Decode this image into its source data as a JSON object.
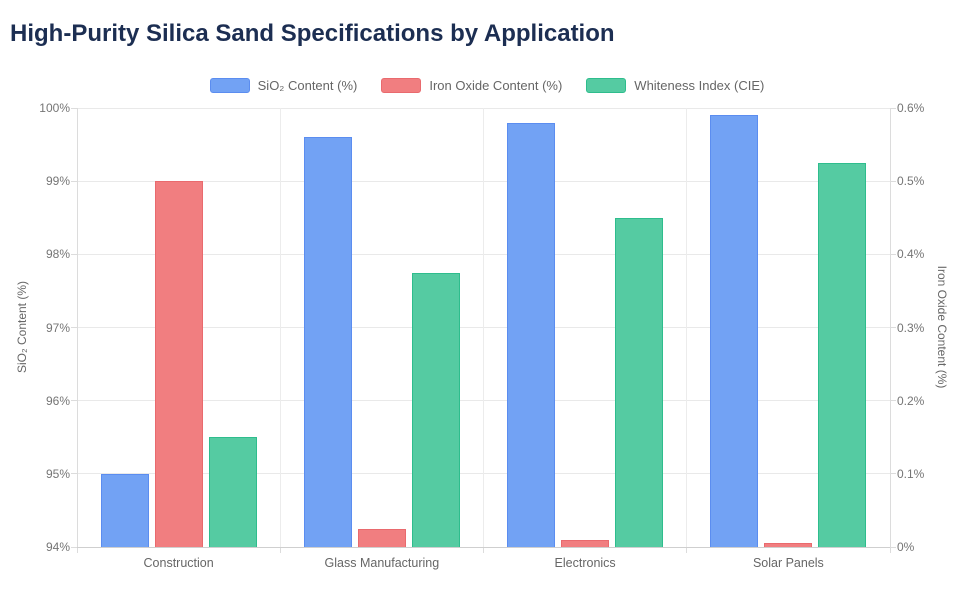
{
  "chart_data": {
    "type": "bar",
    "title": "High-Purity Silica Sand Specifications by Application",
    "categories": [
      "Construction",
      "Glass Manufacturing",
      "Electronics",
      "Solar Panels"
    ],
    "series": [
      {
        "name": "SiO₂ Content (%)",
        "axis": "left",
        "values": [
          95.0,
          99.6,
          99.8,
          99.9
        ],
        "fill": "#72A2F4",
        "border": "#5B8DF0"
      },
      {
        "name": "Iron Oxide Content (%)",
        "axis": "right",
        "values": [
          0.5,
          0.025,
          0.01,
          0.005
        ],
        "fill": "#F17E80",
        "border": "#E96A6E"
      },
      {
        "name": "Whiteness Index (CIE)",
        "axis": "hidden",
        "values": [
          85,
          92.5,
          95,
          97.5
        ],
        "fill": "#55CBA2",
        "border": "#2EBD8D"
      }
    ],
    "axes": {
      "left": {
        "title": "SiO₂ Content (%)",
        "min": 94,
        "max": 100,
        "tick_labels": [
          "100%",
          "99%",
          "98%",
          "97%",
          "96%",
          "95%",
          "94%"
        ]
      },
      "right": {
        "title": "Iron Oxide Content (%)",
        "min": 0,
        "max": 0.6,
        "tick_labels": [
          "0.6%",
          "0.5%",
          "0.4%",
          "0.3%",
          "0.2%",
          "0.1%",
          "0%"
        ]
      },
      "hidden": {
        "title": "",
        "min": 80,
        "max": 100,
        "tick_labels": []
      }
    },
    "legend_position": "top",
    "grid": true
  }
}
